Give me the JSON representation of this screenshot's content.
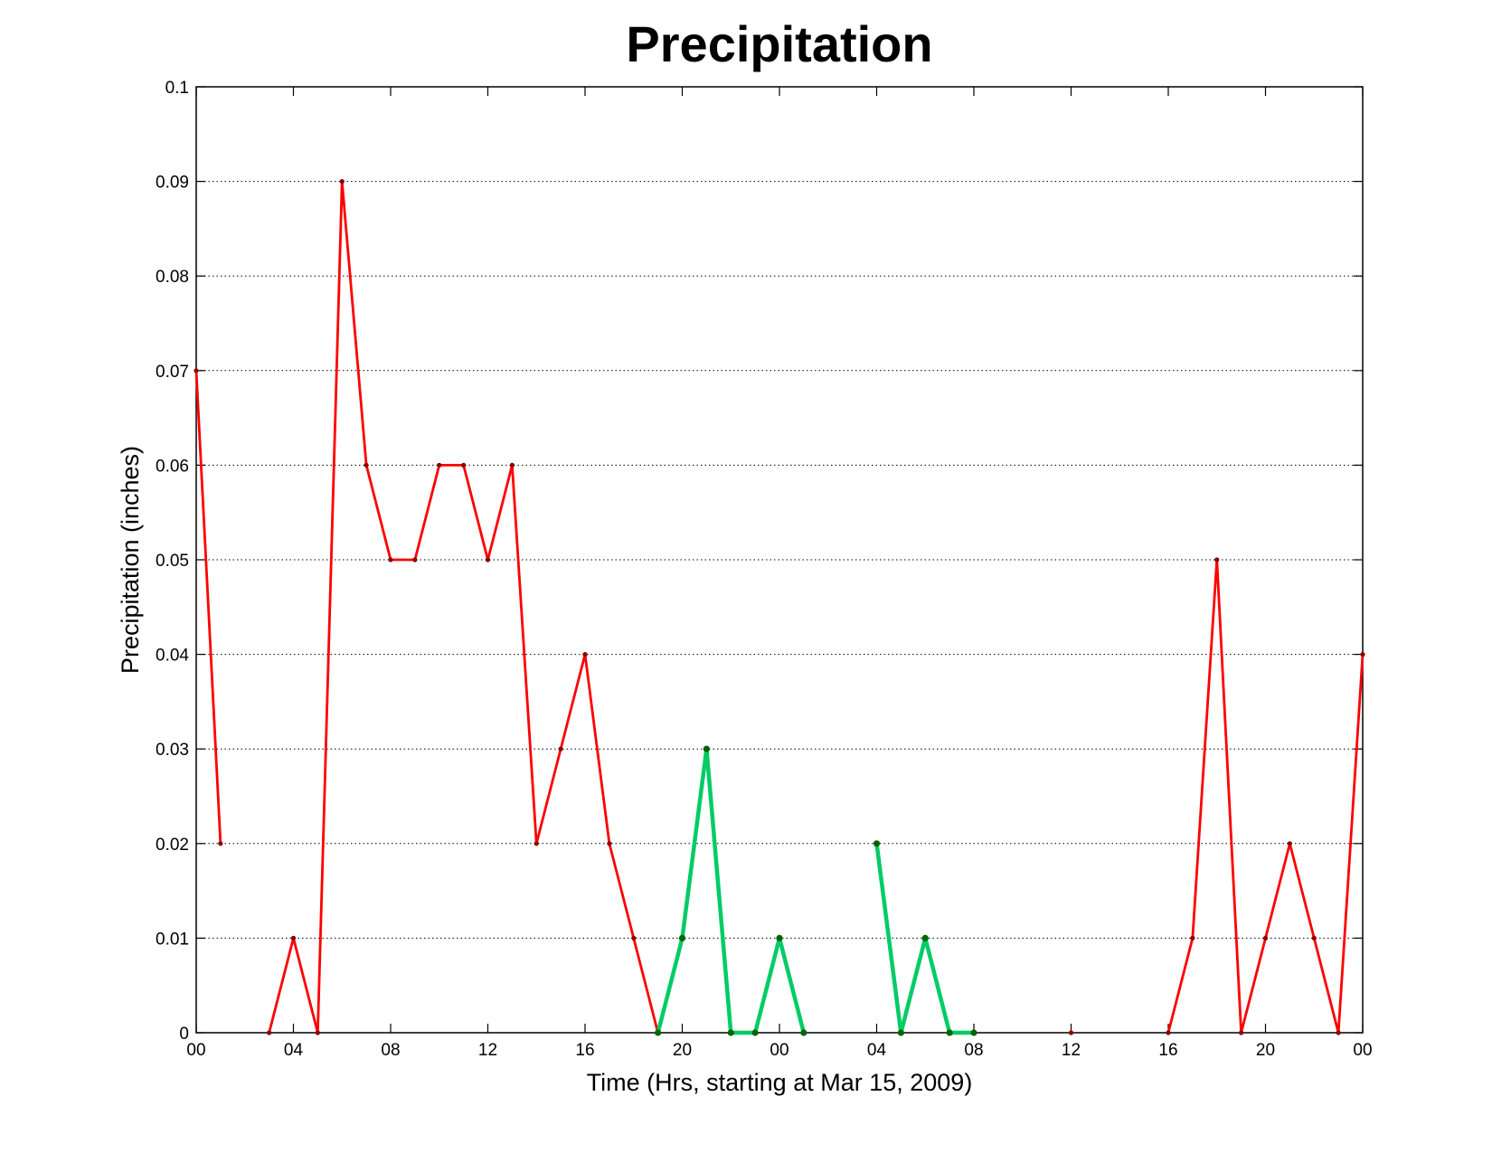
{
  "chart_data": {
    "type": "line",
    "title": "Precipitation",
    "xlabel": "Time (Hrs, starting at Mar 15, 2009)",
    "ylabel": "Precipitation (inches)",
    "x_unit": "hour",
    "xlim": [
      0,
      48
    ],
    "ylim": [
      0,
      0.1
    ],
    "grid": true,
    "legend": "none",
    "x_ticks": [
      {
        "x": 0,
        "label": "00"
      },
      {
        "x": 4,
        "label": "04"
      },
      {
        "x": 8,
        "label": "08"
      },
      {
        "x": 12,
        "label": "12"
      },
      {
        "x": 16,
        "label": "16"
      },
      {
        "x": 20,
        "label": "20"
      },
      {
        "x": 24,
        "label": "00"
      },
      {
        "x": 28,
        "label": "04"
      },
      {
        "x": 32,
        "label": "08"
      },
      {
        "x": 36,
        "label": "12"
      },
      {
        "x": 40,
        "label": "16"
      },
      {
        "x": 44,
        "label": "20"
      },
      {
        "x": 48,
        "label": "00"
      }
    ],
    "y_ticks": [
      {
        "y": 0,
        "label": "0"
      },
      {
        "y": 0.01,
        "label": "0.01"
      },
      {
        "y": 0.02,
        "label": "0.02"
      },
      {
        "y": 0.03,
        "label": "0.03"
      },
      {
        "y": 0.04,
        "label": "0.04"
      },
      {
        "y": 0.05,
        "label": "0.05"
      },
      {
        "y": 0.06,
        "label": "0.06"
      },
      {
        "y": 0.07,
        "label": "0.07"
      },
      {
        "y": 0.08,
        "label": "0.08"
      },
      {
        "y": 0.09,
        "label": "0.09"
      },
      {
        "y": 0.1,
        "label": "0.1"
      }
    ],
    "series": [
      {
        "color": "#ff0000",
        "marker_color": "#8b0000",
        "segments": [
          [
            [
              0,
              0.07
            ],
            [
              1,
              0.02
            ]
          ],
          [
            [
              3,
              0
            ],
            [
              4,
              0.01
            ],
            [
              5,
              0
            ],
            [
              6,
              0.09
            ],
            [
              7,
              0.06
            ],
            [
              8,
              0.05
            ],
            [
              9,
              0.05
            ],
            [
              10,
              0.06
            ],
            [
              11,
              0.06
            ],
            [
              12,
              0.05
            ],
            [
              13,
              0.06
            ],
            [
              14,
              0.02
            ],
            [
              15,
              0.03
            ],
            [
              16,
              0.04
            ],
            [
              17,
              0.02
            ],
            [
              18,
              0.01
            ],
            [
              19,
              0
            ]
          ],
          [
            [
              36,
              0
            ]
          ],
          [
            [
              40,
              0
            ],
            [
              41,
              0.01
            ],
            [
              42,
              0.05
            ],
            [
              43,
              0
            ],
            [
              44,
              0.01
            ],
            [
              45,
              0.02
            ],
            [
              46,
              0.01
            ],
            [
              47,
              0
            ],
            [
              48,
              0.04
            ]
          ]
        ]
      },
      {
        "color": "#00cc66",
        "marker_color": "#006400",
        "segments": [
          [
            [
              19,
              0
            ],
            [
              20,
              0.01
            ],
            [
              21,
              0.03
            ],
            [
              22,
              0
            ],
            [
              23,
              0
            ],
            [
              24,
              0.01
            ],
            [
              25,
              0
            ]
          ],
          [
            [
              28,
              0.02
            ],
            [
              29,
              0
            ],
            [
              30,
              0.01
            ],
            [
              31,
              0
            ],
            [
              32,
              0
            ]
          ]
        ]
      }
    ]
  }
}
